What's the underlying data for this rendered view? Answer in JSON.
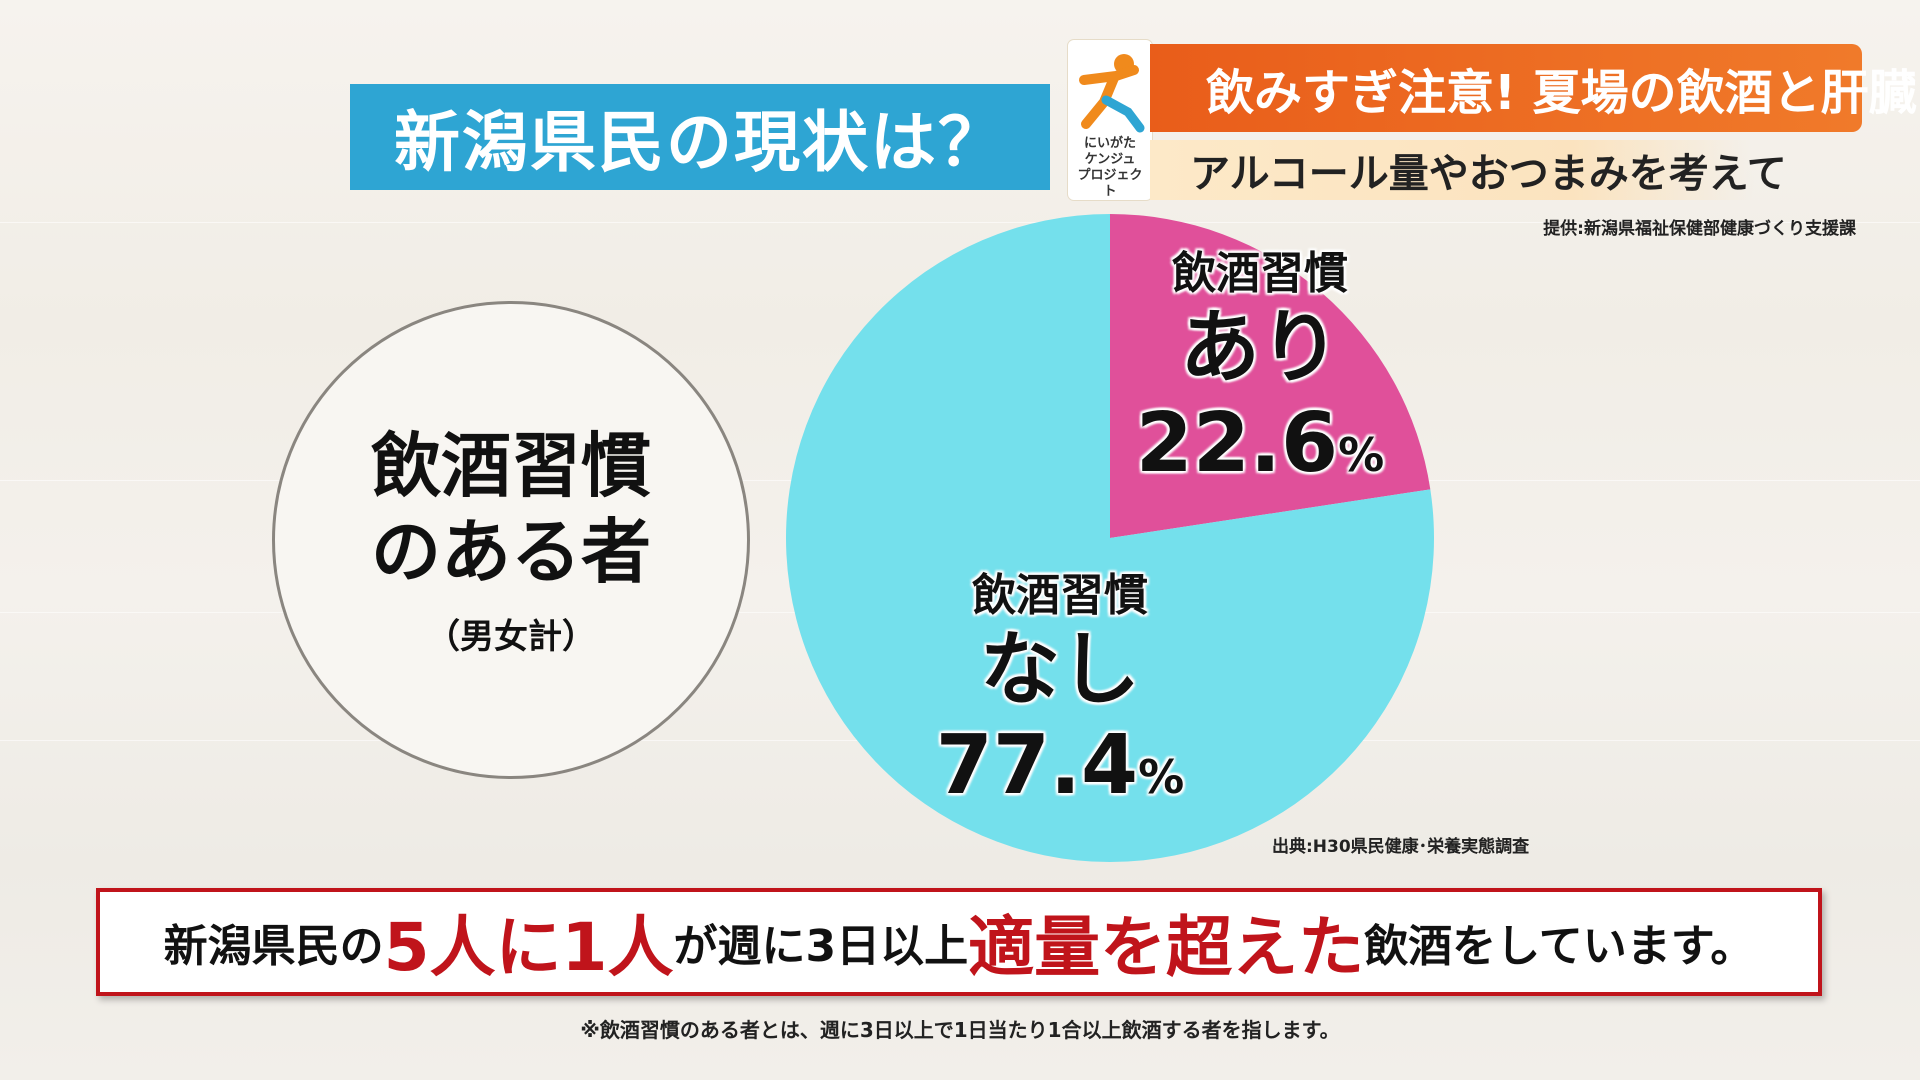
{
  "title": "新潟県民の現状は？",
  "logo": {
    "text": "にいがた\nケンジュ\nプロジェクト",
    "icon": "person-running-icon",
    "colors": {
      "orange": "#f08a1c",
      "blue": "#2ea5d3"
    }
  },
  "headline": "飲みすぎ注意! 夏場の飲酒と肝臓",
  "subline": "アルコール量やおつまみを考えて",
  "provider": "提供:新潟県福祉保健部健康づくり支援課",
  "circle": {
    "line1": "飲酒習慣",
    "line2": "のある者",
    "line3": "（男女計）"
  },
  "chart_data": {
    "type": "pie",
    "slices": [
      {
        "category": "飲酒習慣",
        "label": "あり",
        "value": 22.6,
        "value_text": "22.6",
        "unit": "%",
        "color": "#e0509a"
      },
      {
        "category": "飲酒習慣",
        "label": "なし",
        "value": 77.4,
        "value_text": "77.4",
        "unit": "%",
        "color": "#74e0ec"
      }
    ]
  },
  "source": "出典:H30県民健康･栄養実態調査",
  "banner": {
    "p1": "新潟県民の",
    "r1": "5人に1人",
    "p2": "が週に3日以上",
    "r2": "適量を超えた",
    "p3": "飲酒をしています。"
  },
  "footnote": "※飲酒習慣のある者とは、週に3日以上で1日当たり1合以上飲酒する者を指します。"
}
